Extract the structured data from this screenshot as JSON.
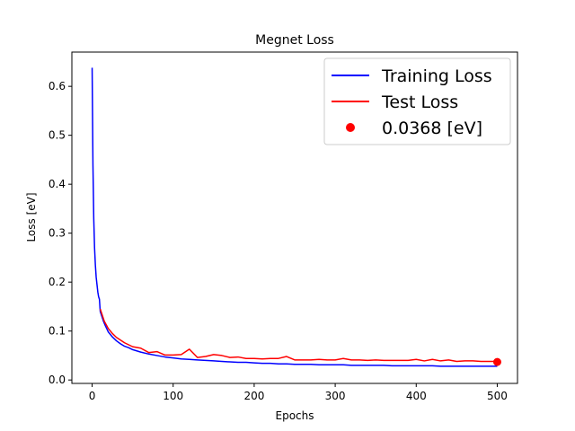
{
  "chart_data": {
    "type": "line",
    "title": "Megnet Loss",
    "xlabel": "Epochs",
    "ylabel": "Loss [eV]",
    "xlim": [
      -25,
      525
    ],
    "ylim": [
      -0.007,
      0.67
    ],
    "xticks": [
      0,
      100,
      200,
      300,
      400,
      500
    ],
    "yticks": [
      0.0,
      0.1,
      0.2,
      0.3,
      0.4,
      0.5,
      0.6
    ],
    "xtick_labels": [
      "0",
      "100",
      "200",
      "300",
      "400",
      "500"
    ],
    "ytick_labels": [
      "0.0",
      "0.1",
      "0.2",
      "0.3",
      "0.4",
      "0.5",
      "0.6"
    ],
    "grid": false,
    "legend_position": "top-right",
    "series": [
      {
        "name": "Training Loss",
        "color": "#0000ff",
        "x": [
          0,
          1,
          2,
          3,
          4,
          5,
          6,
          7,
          8,
          9,
          10,
          12,
          14,
          16,
          18,
          20,
          25,
          30,
          35,
          40,
          45,
          50,
          60,
          70,
          80,
          90,
          100,
          110,
          120,
          130,
          140,
          150,
          160,
          170,
          180,
          190,
          200,
          210,
          220,
          230,
          240,
          250,
          260,
          270,
          280,
          290,
          300,
          310,
          320,
          330,
          340,
          350,
          360,
          370,
          380,
          390,
          400,
          410,
          420,
          430,
          440,
          450,
          460,
          470,
          480,
          490,
          500
        ],
        "y": [
          0.638,
          0.44,
          0.33,
          0.27,
          0.235,
          0.21,
          0.195,
          0.18,
          0.17,
          0.165,
          0.14,
          0.13,
          0.12,
          0.112,
          0.105,
          0.098,
          0.088,
          0.08,
          0.074,
          0.069,
          0.066,
          0.062,
          0.057,
          0.053,
          0.05,
          0.047,
          0.045,
          0.043,
          0.042,
          0.041,
          0.04,
          0.039,
          0.038,
          0.037,
          0.036,
          0.036,
          0.035,
          0.034,
          0.034,
          0.033,
          0.033,
          0.032,
          0.032,
          0.032,
          0.031,
          0.031,
          0.031,
          0.031,
          0.03,
          0.03,
          0.03,
          0.03,
          0.03,
          0.029,
          0.029,
          0.029,
          0.029,
          0.029,
          0.029,
          0.028,
          0.028,
          0.028,
          0.028,
          0.028,
          0.028,
          0.028,
          0.028
        ]
      },
      {
        "name": "Test Loss",
        "color": "#ff0000",
        "x": [
          10,
          15,
          20,
          25,
          30,
          40,
          50,
          60,
          70,
          80,
          90,
          100,
          110,
          120,
          130,
          140,
          150,
          160,
          170,
          180,
          190,
          200,
          210,
          220,
          230,
          240,
          250,
          260,
          270,
          280,
          290,
          300,
          310,
          320,
          330,
          340,
          350,
          360,
          370,
          380,
          390,
          400,
          410,
          420,
          430,
          440,
          450,
          460,
          470,
          480,
          490,
          500
        ],
        "y": [
          0.145,
          0.12,
          0.105,
          0.095,
          0.087,
          0.076,
          0.068,
          0.065,
          0.056,
          0.058,
          0.051,
          0.051,
          0.052,
          0.063,
          0.046,
          0.048,
          0.052,
          0.05,
          0.046,
          0.047,
          0.044,
          0.044,
          0.043,
          0.044,
          0.044,
          0.048,
          0.041,
          0.041,
          0.041,
          0.042,
          0.041,
          0.041,
          0.044,
          0.041,
          0.041,
          0.04,
          0.041,
          0.04,
          0.04,
          0.04,
          0.04,
          0.042,
          0.039,
          0.042,
          0.039,
          0.041,
          0.038,
          0.039,
          0.039,
          0.038,
          0.038,
          0.038
        ]
      }
    ],
    "point": {
      "name": "0.0368 [eV]",
      "color": "#ff0000",
      "x": 500,
      "y": 0.0368
    }
  }
}
